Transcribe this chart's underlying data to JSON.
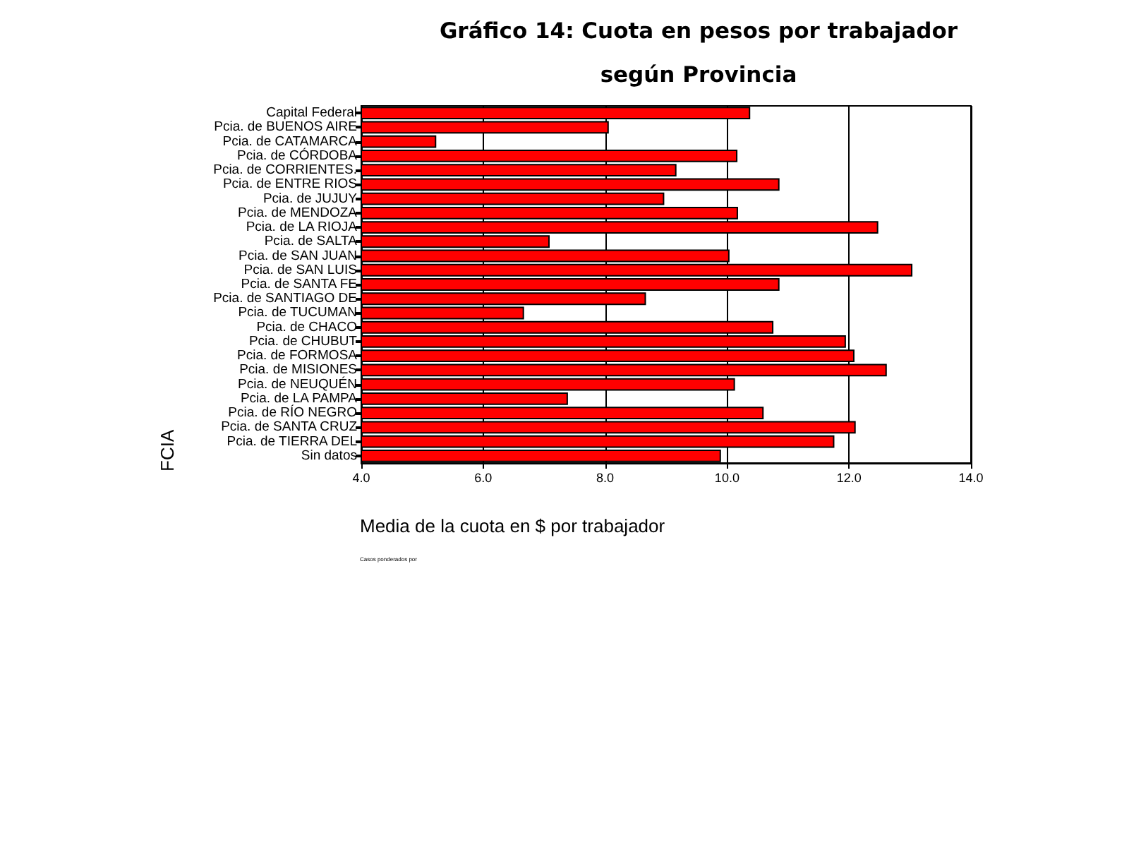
{
  "chart_data": {
    "type": "bar",
    "orientation": "horizontal",
    "title": "Gráfico 14: Cuota en pesos por trabajador",
    "subtitle": "según Provincia",
    "xlabel": "Media de la cuota en $ por trabajador",
    "ylabel": "FCIA",
    "annotations": [
      "Casos ponderados por"
    ],
    "categories": [
      "Capital Federal",
      "Pcia. de BUENOS AIRE",
      "Pcia. de CATAMARCA",
      "Pcia. de CÓRDOBA",
      "Pcia. de CORRIENTES.",
      "Pcia. de ENTRE RIOS",
      "Pcia. de JUJUY",
      "Pcia. de MENDOZA",
      "Pcia. de LA RIOJA",
      "Pcia. de SALTA",
      "Pcia. de SAN JUAN",
      "Pcia. de SAN LUIS",
      "Pcia. de SANTA FE",
      "Pcia. de SANTIAGO DE",
      "Pcia. de TUCUMAN",
      "Pcia. de CHACO",
      "Pcia. de CHUBUT",
      "Pcia. de FORMOSA",
      "Pcia. de MISIONES",
      "Pcia. de NEUQUÉN",
      "Pcia. de LA PAMPA",
      "Pcia. de RÍO NEGRO",
      "Pcia. de SANTA CRUZ",
      "Pcia. de TIERRA DEL",
      "Sin datos"
    ],
    "values": [
      10.38,
      8.06,
      5.23,
      10.17,
      9.17,
      10.86,
      8.97,
      10.18,
      12.48,
      7.09,
      10.04,
      13.04,
      10.86,
      8.67,
      6.67,
      10.76,
      11.95,
      12.09,
      12.62,
      10.13,
      7.39,
      10.6,
      12.11,
      11.76,
      9.9
    ],
    "color": "#ff0000",
    "xlim": [
      4,
      14
    ],
    "xticks": [
      {
        "value": 4,
        "label": "4.0"
      },
      {
        "value": 6,
        "label": "6.0"
      },
      {
        "value": 8,
        "label": "8.0"
      },
      {
        "value": 10,
        "label": "10.0"
      },
      {
        "value": 12,
        "label": "12.0"
      },
      {
        "value": 14,
        "label": "14.0"
      }
    ],
    "grid": "x"
  }
}
